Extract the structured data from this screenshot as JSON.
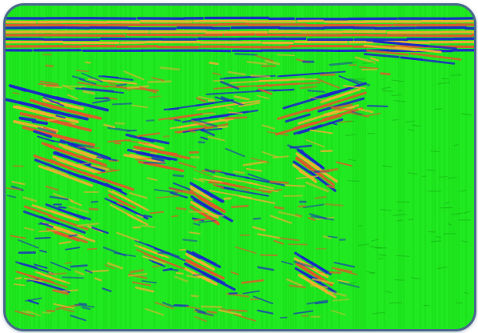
{
  "image": {
    "subject": "seismic-section",
    "palette": {
      "background": "#1ee81e",
      "peak": "#f0b030",
      "mid": "#e05a2a",
      "trough": "#1a28c8",
      "frame": "#4a6a8c"
    }
  }
}
